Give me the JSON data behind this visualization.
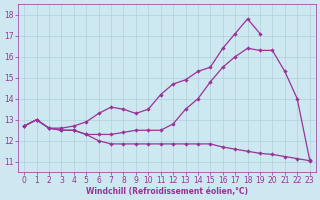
{
  "bg_color": "#cde8f0",
  "line_color": "#993399",
  "grid_color": "#b0d0dc",
  "xlabel": "Windchill (Refroidissement éolien,°C)",
  "xlim": [
    -0.5,
    23.5
  ],
  "ylim": [
    10.5,
    18.5
  ],
  "xticks": [
    0,
    1,
    2,
    3,
    4,
    5,
    6,
    7,
    8,
    9,
    10,
    11,
    12,
    13,
    14,
    15,
    16,
    17,
    18,
    19,
    20,
    21,
    22,
    23
  ],
  "yticks": [
    11,
    12,
    13,
    14,
    15,
    16,
    17,
    18
  ],
  "series": [
    {
      "x": [
        0,
        1,
        2,
        3,
        4,
        5,
        6,
        7,
        8,
        9,
        10,
        11,
        12,
        13,
        14,
        15,
        16,
        17,
        18,
        19,
        20,
        21,
        22,
        23
      ],
      "y": [
        12.7,
        13.0,
        12.6,
        12.5,
        12.5,
        12.3,
        12.0,
        11.85,
        11.85,
        11.85,
        11.85,
        11.85,
        11.85,
        11.85,
        11.85,
        11.85,
        11.7,
        11.6,
        11.5,
        11.4,
        11.35,
        11.25,
        11.15,
        11.05
      ]
    },
    {
      "x": [
        0,
        1,
        2,
        3,
        4,
        5,
        6,
        7,
        8,
        9,
        10,
        11,
        12,
        13,
        14,
        15,
        16,
        17,
        18,
        19,
        20,
        21,
        22,
        23
      ],
      "y": [
        12.7,
        13.0,
        12.6,
        12.5,
        12.5,
        12.3,
        12.3,
        12.3,
        12.4,
        12.5,
        12.5,
        12.5,
        12.8,
        13.5,
        14.0,
        14.8,
        15.5,
        16.0,
        16.4,
        16.3,
        16.3,
        15.3,
        14.0,
        11.1
      ]
    },
    {
      "x": [
        0,
        1,
        2,
        3,
        4,
        5,
        6,
        7,
        8,
        9,
        10,
        11,
        12,
        13,
        14,
        15,
        16,
        17,
        18,
        19
      ],
      "y": [
        12.7,
        13.0,
        12.6,
        12.6,
        12.7,
        12.9,
        13.3,
        13.6,
        13.5,
        13.3,
        13.5,
        14.2,
        14.7,
        14.9,
        15.3,
        15.5,
        16.4,
        17.1,
        17.8,
        17.1
      ]
    }
  ]
}
